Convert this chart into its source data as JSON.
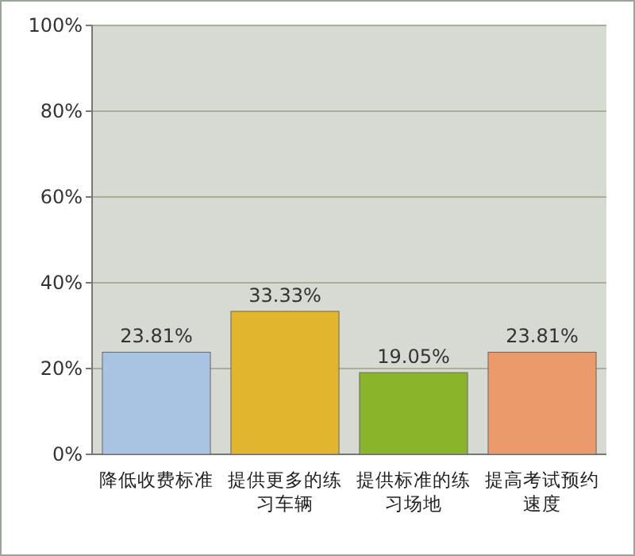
{
  "chart_data": {
    "type": "bar",
    "categories": [
      "降低收费标准",
      "提供更多的练习车辆",
      "提供标准的练习场地",
      "提高考试预约速度"
    ],
    "values": [
      23.81,
      33.33,
      19.05,
      23.81
    ],
    "colors": [
      "#a9c4e2",
      "#e2b52e",
      "#8ab52a",
      "#eb9a6c"
    ],
    "value_labels": [
      "23.81%",
      "33.33%",
      "19.05%",
      "23.81%"
    ],
    "ylim": [
      0,
      100
    ],
    "yticks": [
      {
        "value": 0,
        "label": "0%"
      },
      {
        "value": 20,
        "label": "20%"
      },
      {
        "value": 40,
        "label": "40%"
      },
      {
        "value": 60,
        "label": "60%"
      },
      {
        "value": 80,
        "label": "80%"
      },
      {
        "value": 100,
        "label": "100%"
      }
    ],
    "grid": "y"
  }
}
